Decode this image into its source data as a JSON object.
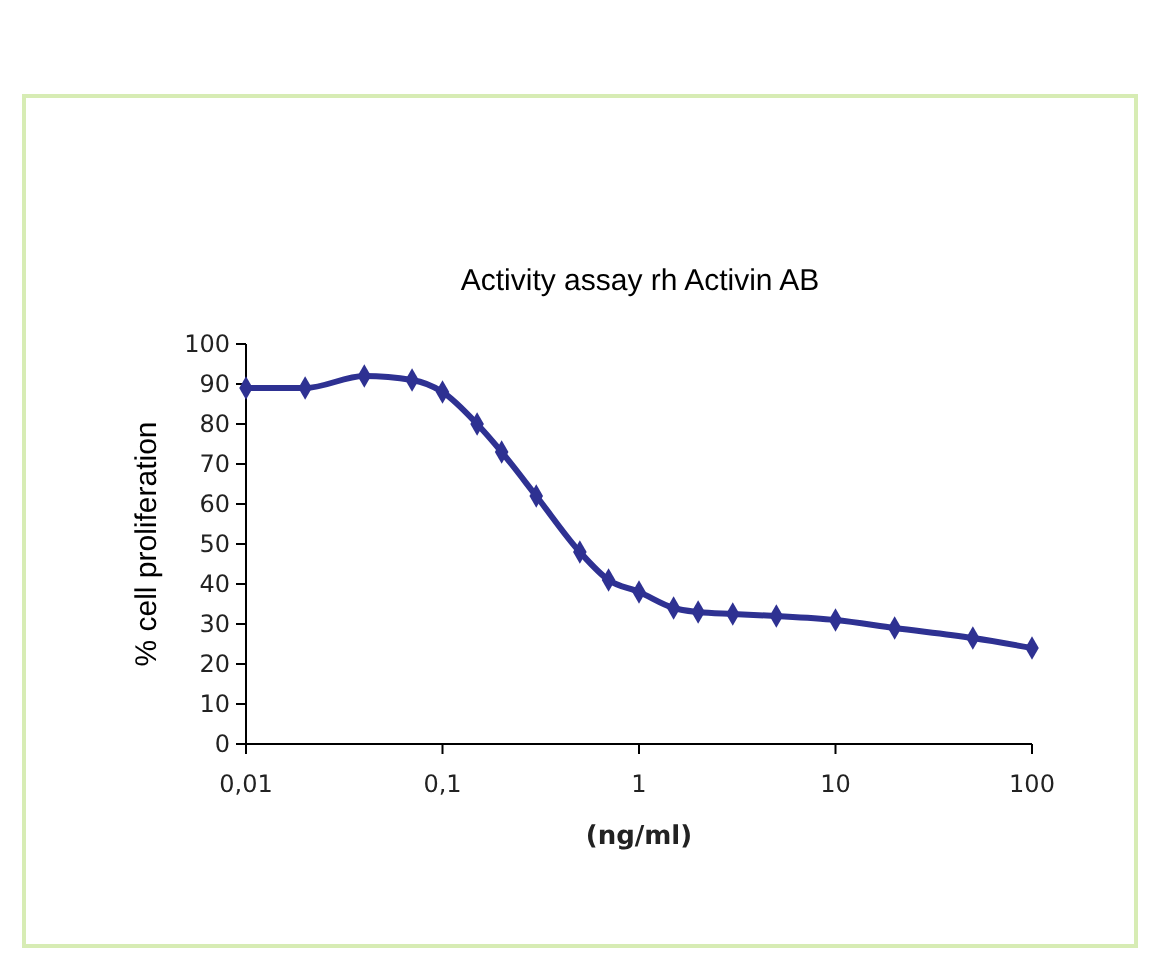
{
  "chart_data": {
    "type": "line",
    "title": "Activity assay rh Activin AB",
    "xlabel": "(ng/ml)",
    "ylabel": "% cell proliferation",
    "log": "x",
    "x": [
      0.01,
      0.02,
      0.04,
      0.07,
      0.1,
      0.15,
      0.2,
      0.3,
      0.5,
      0.7,
      1,
      1.5,
      2,
      3,
      5,
      10,
      20,
      50,
      100
    ],
    "series": [
      {
        "color": "#2e3192",
        "values": [
          89,
          89,
          92,
          91,
          88,
          80,
          73,
          62,
          48,
          41,
          38,
          34,
          33,
          32.5,
          32,
          31,
          29,
          26.5,
          24
        ]
      }
    ],
    "xlim": [
      0.01,
      100
    ],
    "xticks": [
      {
        "value": 0.01,
        "label": "0,01"
      },
      {
        "value": 0.1,
        "label": "0,1"
      },
      1,
      10,
      100
    ],
    "ylim": [
      0,
      100
    ],
    "yticks": [
      0,
      10,
      20,
      30,
      40,
      50,
      60,
      70,
      80,
      90,
      100
    ],
    "grid": false,
    "marker": "diamond",
    "line_style": "solid"
  }
}
